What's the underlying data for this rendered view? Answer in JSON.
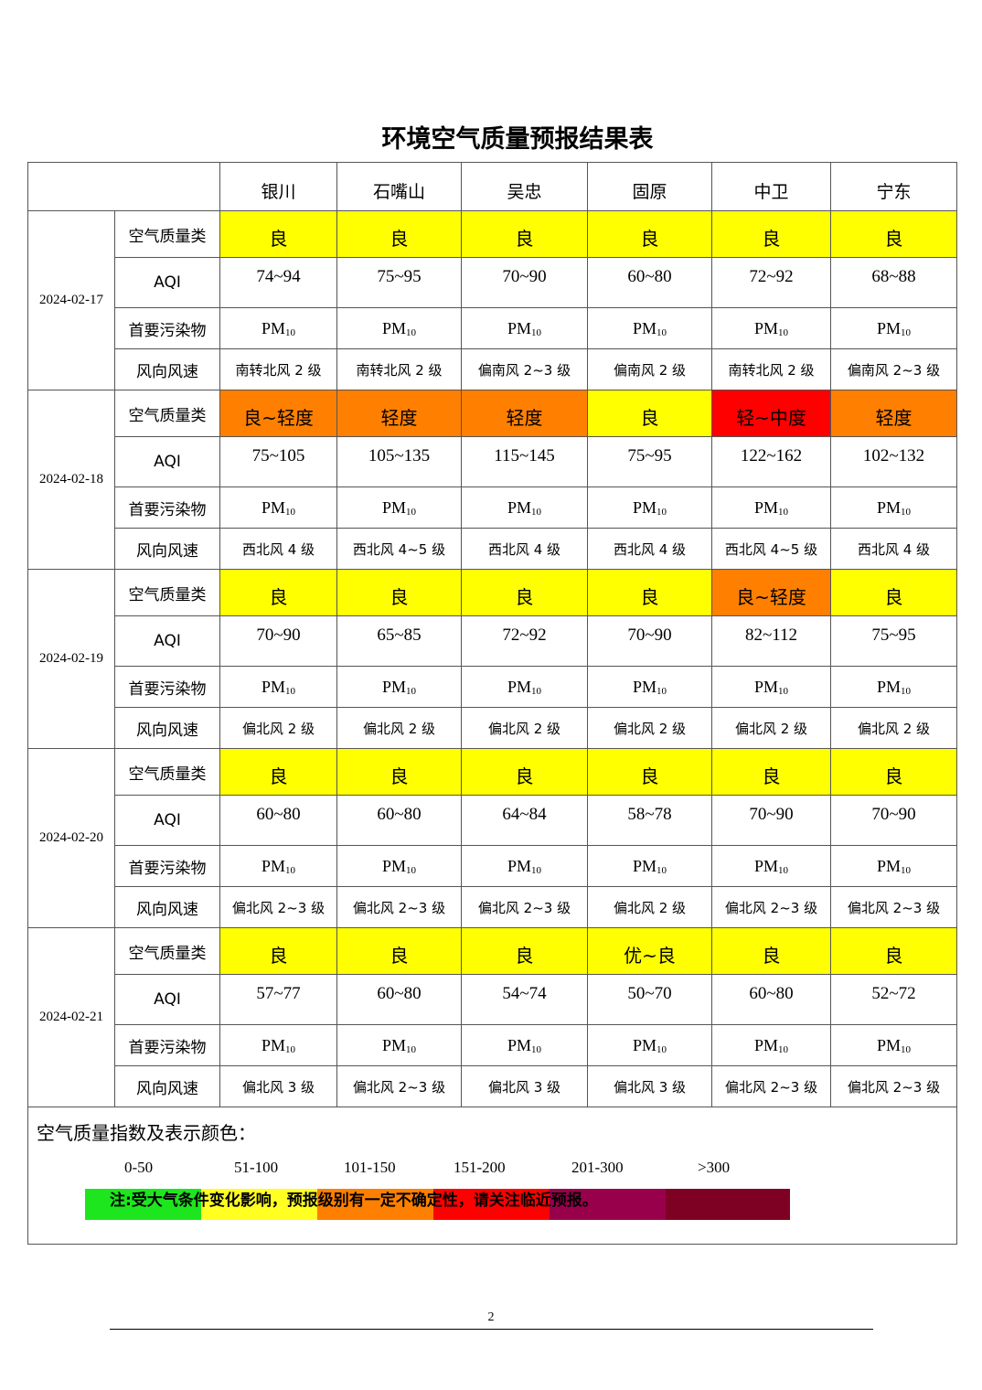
{
  "title": "环境空气质量预报结果表",
  "cities": [
    "银川",
    "石嘴山",
    "吴忠",
    "固原",
    "中卫",
    "宁东"
  ],
  "row_labels": [
    "空气质量类",
    "AQI",
    "首要污染物",
    "风向风速"
  ],
  "days": [
    {
      "date": "2024-02-17",
      "quality": [
        {
          "text": "良",
          "color": "#ffff00"
        },
        {
          "text": "良",
          "color": "#ffff00"
        },
        {
          "text": "良",
          "color": "#ffff00"
        },
        {
          "text": "良",
          "color": "#ffff00"
        },
        {
          "text": "良",
          "color": "#ffff00"
        },
        {
          "text": "良",
          "color": "#ffff00"
        }
      ],
      "aqi": [
        "74~94",
        "75~95",
        "70~90",
        "60~80",
        "72~92",
        "68~88"
      ],
      "pollutant": [
        "PM10",
        "PM10",
        "PM10",
        "PM10",
        "PM10",
        "PM10"
      ],
      "wind": [
        "南转北风 2 级",
        "南转北风 2 级",
        "偏南风 2~3 级",
        "偏南风 2 级",
        "南转北风 2 级",
        "偏南风 2~3 级"
      ]
    },
    {
      "date": "2024-02-18",
      "quality": [
        {
          "text": "良~轻度",
          "color": "#ff8000"
        },
        {
          "text": "轻度",
          "color": "#ff8000"
        },
        {
          "text": "轻度",
          "color": "#ff8000"
        },
        {
          "text": "良",
          "color": "#ffff00"
        },
        {
          "text": "轻~中度",
          "color": "#ff0000"
        },
        {
          "text": "轻度",
          "color": "#ff8000"
        }
      ],
      "aqi": [
        "75~105",
        "105~135",
        "115~145",
        "75~95",
        "122~162",
        "102~132"
      ],
      "pollutant": [
        "PM10",
        "PM10",
        "PM10",
        "PM10",
        "PM10",
        "PM10"
      ],
      "wind": [
        "西北风 4 级",
        "西北风 4~5 级",
        "西北风 4 级",
        "西北风 4 级",
        "西北风 4~5 级",
        "西北风 4 级"
      ]
    },
    {
      "date": "2024-02-19",
      "quality": [
        {
          "text": "良",
          "color": "#ffff00"
        },
        {
          "text": "良",
          "color": "#ffff00"
        },
        {
          "text": "良",
          "color": "#ffff00"
        },
        {
          "text": "良",
          "color": "#ffff00"
        },
        {
          "text": "良~轻度",
          "color": "#ff8000"
        },
        {
          "text": "良",
          "color": "#ffff00"
        }
      ],
      "aqi": [
        "70~90",
        "65~85",
        "72~92",
        "70~90",
        "82~112",
        "75~95"
      ],
      "pollutant": [
        "PM10",
        "PM10",
        "PM10",
        "PM10",
        "PM10",
        "PM10"
      ],
      "wind": [
        "偏北风 2 级",
        "偏北风 2 级",
        "偏北风 2 级",
        "偏北风 2 级",
        "偏北风 2 级",
        "偏北风 2 级"
      ]
    },
    {
      "date": "2024-02-20",
      "quality": [
        {
          "text": "良",
          "color": "#ffff00"
        },
        {
          "text": "良",
          "color": "#ffff00"
        },
        {
          "text": "良",
          "color": "#ffff00"
        },
        {
          "text": "良",
          "color": "#ffff00"
        },
        {
          "text": "良",
          "color": "#ffff00"
        },
        {
          "text": "良",
          "color": "#ffff00"
        }
      ],
      "aqi": [
        "60~80",
        "60~80",
        "64~84",
        "58~78",
        "70~90",
        "70~90"
      ],
      "pollutant": [
        "PM10",
        "PM10",
        "PM10",
        "PM10",
        "PM10",
        "PM10"
      ],
      "wind": [
        "偏北风 2~3 级",
        "偏北风 2~3 级",
        "偏北风 2~3 级",
        "偏北风 2 级",
        "偏北风 2~3 级",
        "偏北风 2~3 级"
      ]
    },
    {
      "date": "2024-02-21",
      "quality": [
        {
          "text": "良",
          "color": "#ffff00"
        },
        {
          "text": "良",
          "color": "#ffff00"
        },
        {
          "text": "良",
          "color": "#ffff00"
        },
        {
          "text": "优~良",
          "color": "#ffff00"
        },
        {
          "text": "良",
          "color": "#ffff00"
        },
        {
          "text": "良",
          "color": "#ffff00"
        }
      ],
      "aqi": [
        "57~77",
        "60~80",
        "54~74",
        "50~70",
        "60~80",
        "52~72"
      ],
      "pollutant": [
        "PM10",
        "PM10",
        "PM10",
        "PM10",
        "PM10",
        "PM10"
      ],
      "wind": [
        "偏北风 3 级",
        "偏北风 2~3 级",
        "偏北风 3 级",
        "偏北风 3 级",
        "偏北风 2~3 级",
        "偏北风 2~3 级"
      ]
    }
  ],
  "legend": {
    "label": "空气质量指数及表示颜色：",
    "items": [
      {
        "range": "0-50",
        "color": "#1ee61e"
      },
      {
        "range": "51-100",
        "color": "#ffff22"
      },
      {
        "range": "101-150",
        "color": "#ff8000"
      },
      {
        "range": "151-200",
        "color": "#ff0000"
      },
      {
        "range": "201-300",
        "color": "#99004c"
      },
      {
        "range": ">300",
        "color": "#7e0023"
      }
    ]
  },
  "note": "注:受大气条件变化影响，预报级别有一定不确定性，请关注临近预报。",
  "page_number": "2"
}
